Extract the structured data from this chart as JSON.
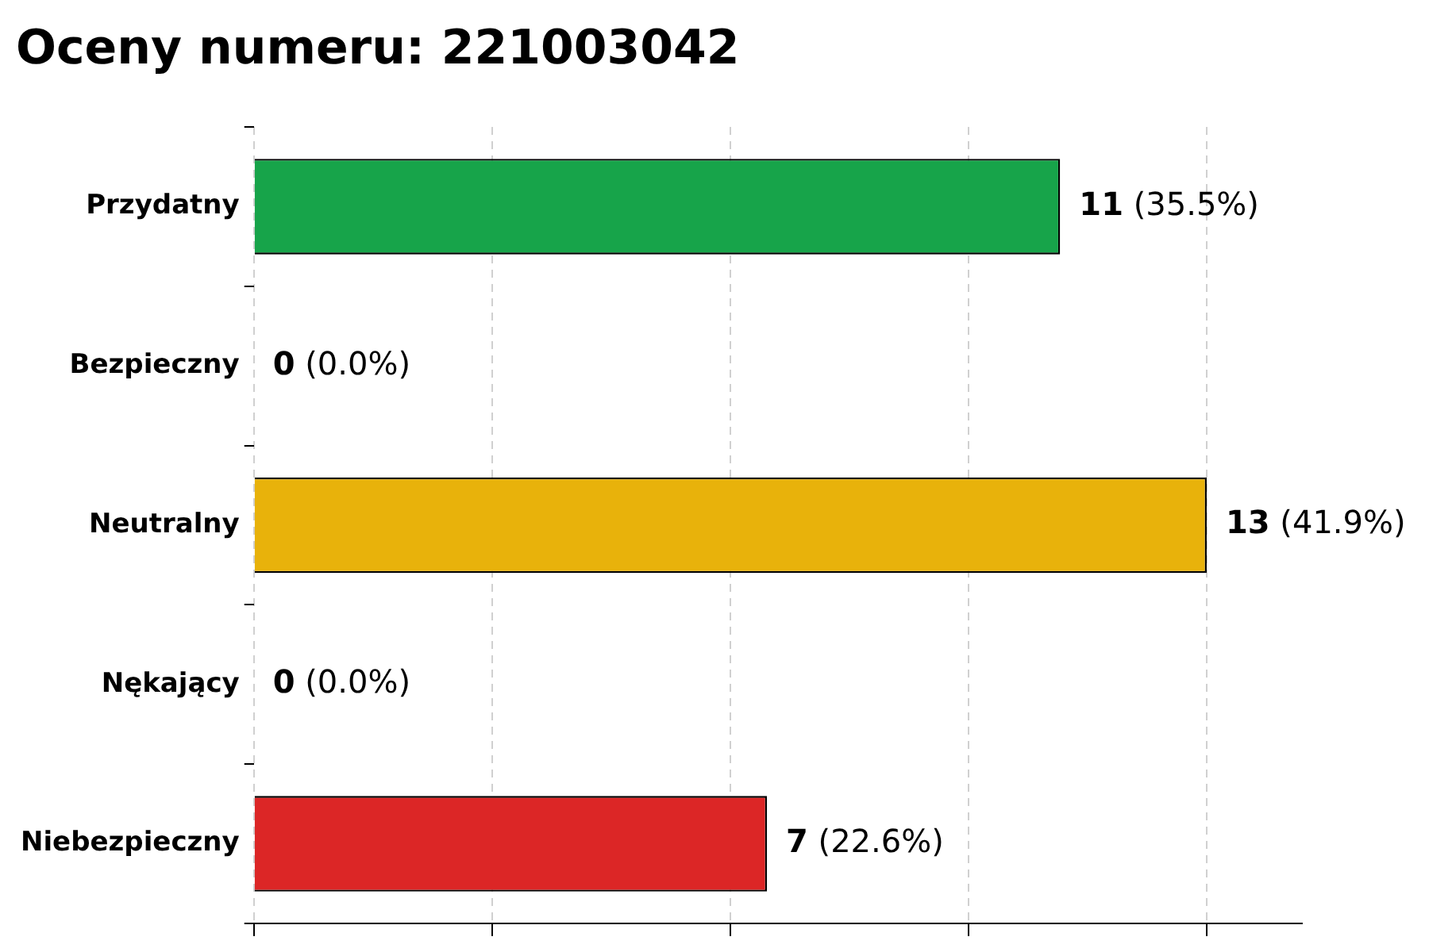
{
  "chart_data": {
    "type": "bar",
    "orientation": "horizontal",
    "title": "Oceny numeru: 221003042",
    "categories": [
      "Przydatny",
      "Bezpieczny",
      "Neutralny",
      "Nękający",
      "Niebezpieczny"
    ],
    "values": [
      11,
      0,
      13,
      0,
      7
    ],
    "colors": [
      "#17a44a",
      "#17a44a",
      "#e8b20b",
      "#dc2626",
      "#dc2626"
    ],
    "value_labels": [
      "11 (35.5%)",
      "0 (0.0%)",
      "13 (41.9%)",
      "0 (0.0%)",
      "7 (22.6%)"
    ],
    "xlim": [
      0,
      14.3
    ],
    "xticks": [
      {
        "value": 0,
        "label": null
      },
      {
        "value": 3.25,
        "label": null
      },
      {
        "value": 6.5,
        "label": null
      },
      {
        "value": 9.75,
        "label": null
      },
      {
        "value": 13,
        "label": null
      }
    ],
    "tick_labels": "y",
    "grid": "x",
    "legend": false
  }
}
